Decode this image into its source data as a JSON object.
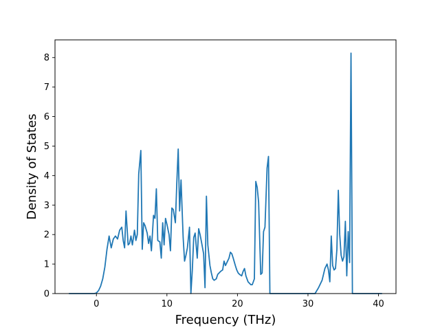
{
  "chart_data": {
    "type": "line",
    "title": "",
    "xlabel": "Frequency (THz)",
    "ylabel": "Density of States",
    "xlim": [
      -5.87,
      42.48
    ],
    "ylim": [
      0,
      8.6
    ],
    "xticks": [
      0,
      10,
      20,
      30,
      40
    ],
    "yticks": [
      0,
      1,
      2,
      3,
      4,
      5,
      6,
      7,
      8
    ],
    "xtick_labels": [
      "0",
      "10",
      "20",
      "30",
      "40"
    ],
    "ytick_labels": [
      "0",
      "1",
      "2",
      "3",
      "4",
      "5",
      "6",
      "7",
      "8"
    ],
    "grid": false,
    "legend": "none",
    "series": [
      {
        "color": "#1f77b4",
        "x": [
          -3.9,
          -0.3,
          0.0,
          0.3,
          0.6,
          0.9,
          1.2,
          1.5,
          1.8,
          2.1,
          2.4,
          2.7,
          3.0,
          3.3,
          3.6,
          3.8,
          4.0,
          4.2,
          4.5,
          4.7,
          4.9,
          5.1,
          5.4,
          5.6,
          5.8,
          6.0,
          6.3,
          6.5,
          6.7,
          6.9,
          7.2,
          7.4,
          7.6,
          7.8,
          8.1,
          8.3,
          8.5,
          8.7,
          9.0,
          9.2,
          9.4,
          9.6,
          9.8,
          10.0,
          10.3,
          10.5,
          10.7,
          10.9,
          11.2,
          11.4,
          11.6,
          11.8,
          12.0,
          12.3,
          12.5,
          12.7,
          12.9,
          13.2,
          13.4,
          13.6,
          13.8,
          14.0,
          14.3,
          14.5,
          14.7,
          14.9,
          15.2,
          15.4,
          15.6,
          15.8,
          16.1,
          16.3,
          16.5,
          16.7,
          17.0,
          17.2,
          17.4,
          17.6,
          17.9,
          18.1,
          18.3,
          18.5,
          18.8,
          19.0,
          19.2,
          19.4,
          19.7,
          19.9,
          20.1,
          20.3,
          20.6,
          20.8,
          21.0,
          21.2,
          21.5,
          21.7,
          21.9,
          22.1,
          22.4,
          22.6,
          22.8,
          23.0,
          23.3,
          23.5,
          23.7,
          23.9,
          24.2,
          24.4,
          24.6,
          24.65,
          31.0,
          31.5,
          32.0,
          32.4,
          32.7,
          32.9,
          33.1,
          33.3,
          33.5,
          33.7,
          33.9,
          34.1,
          34.3,
          34.5,
          34.7,
          34.9,
          35.1,
          35.3,
          35.5,
          35.7,
          35.9,
          36.1,
          36.3,
          36.5,
          36.7,
          36.9,
          40.5
        ],
        "y": [
          0,
          0,
          0.02,
          0.1,
          0.25,
          0.5,
          0.9,
          1.5,
          1.95,
          1.55,
          1.85,
          1.95,
          1.85,
          2.15,
          2.25,
          1.8,
          1.55,
          2.8,
          1.65,
          1.7,
          1.95,
          1.65,
          2.15,
          1.8,
          2.0,
          4.05,
          4.85,
          1.5,
          2.4,
          2.3,
          2.05,
          1.7,
          1.95,
          1.45,
          2.65,
          2.55,
          3.55,
          1.8,
          1.75,
          1.2,
          2.4,
          1.65,
          2.55,
          2.35,
          2.0,
          1.45,
          2.9,
          2.85,
          2.4,
          3.75,
          4.9,
          2.8,
          3.85,
          1.9,
          1.1,
          1.3,
          1.55,
          2.25,
          0.0,
          0.8,
          1.9,
          2.05,
          1.2,
          2.2,
          2.0,
          1.75,
          1.35,
          0.2,
          3.3,
          1.65,
          0.95,
          0.7,
          0.5,
          0.45,
          0.5,
          0.65,
          0.7,
          0.75,
          0.8,
          1.1,
          0.95,
          1.05,
          1.2,
          1.4,
          1.35,
          1.2,
          0.95,
          0.8,
          0.7,
          0.65,
          0.6,
          0.75,
          0.85,
          0.6,
          0.4,
          0.35,
          0.3,
          0.3,
          0.5,
          3.8,
          3.6,
          3.1,
          0.65,
          0.7,
          2.1,
          2.25,
          4.25,
          4.65,
          0.0,
          0.0,
          0.0,
          0.2,
          0.45,
          0.85,
          1.0,
          0.8,
          0.4,
          1.95,
          0.95,
          0.8,
          0.85,
          1.5,
          3.5,
          2.0,
          1.3,
          1.1,
          1.25,
          2.45,
          0.6,
          2.1,
          1.05,
          8.15,
          0.0,
          0.0,
          0.0,
          0.0,
          0.0
        ]
      }
    ]
  }
}
